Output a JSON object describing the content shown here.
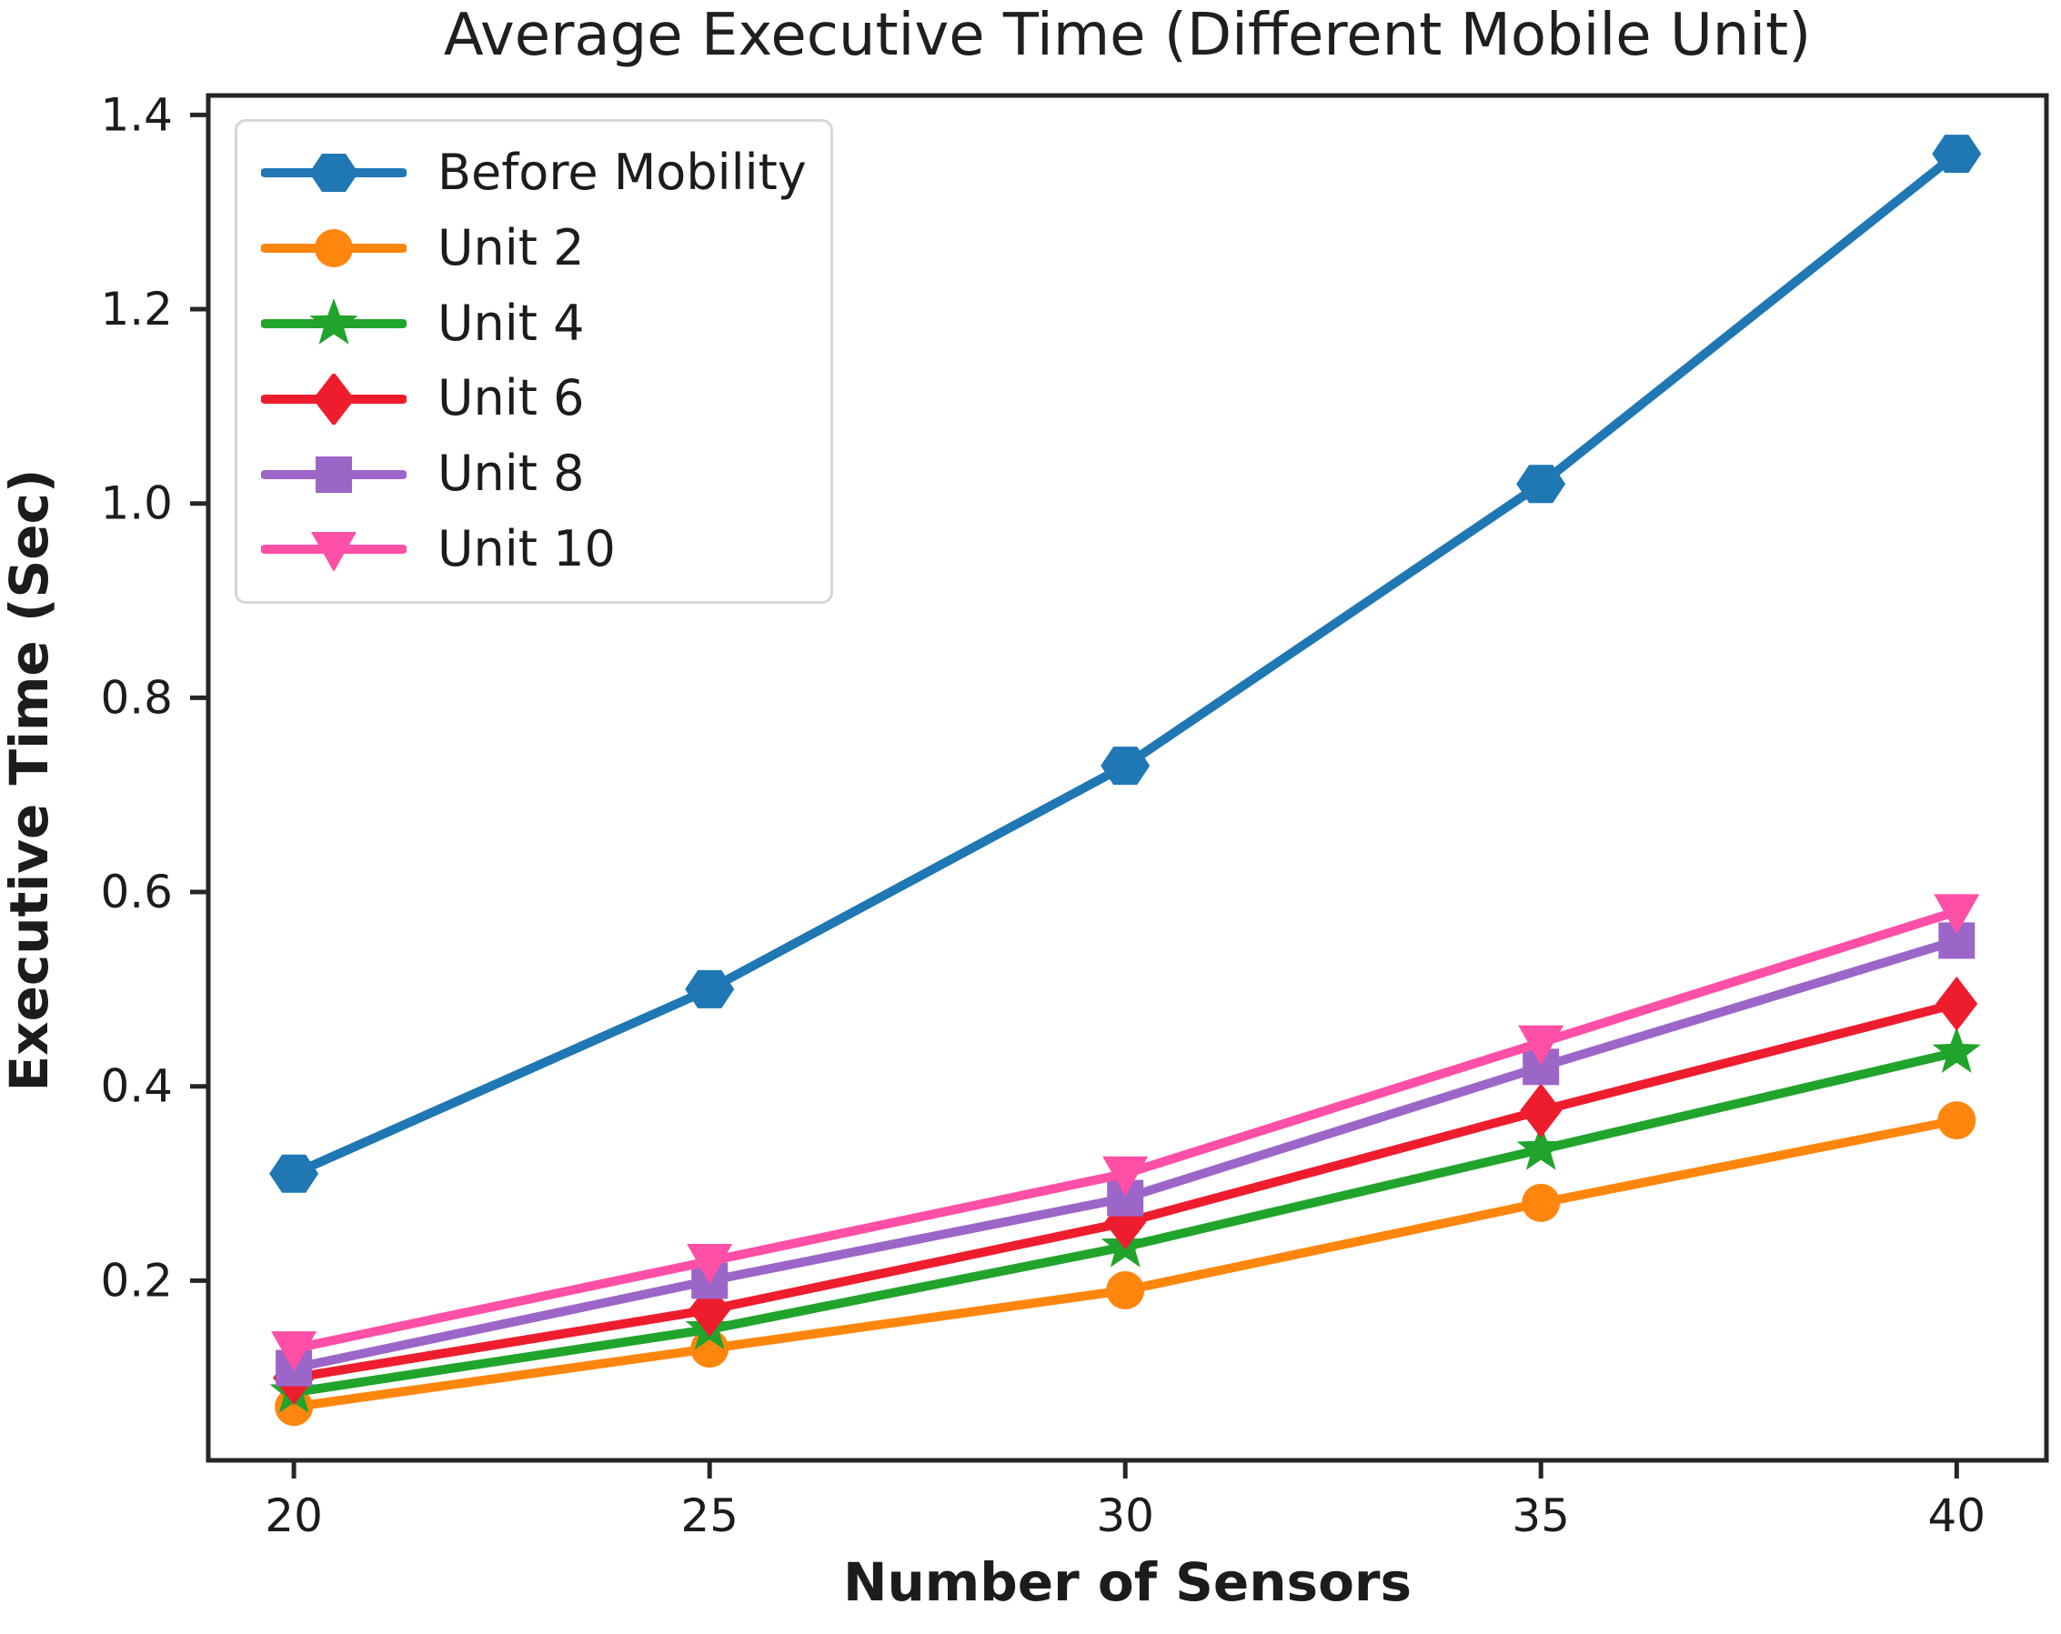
{
  "figure": {
    "background": "#ffffff"
  },
  "chart_data": {
    "type": "line",
    "title": "Average Executive Time (Different Mobile Unit)",
    "xlabel": "Number of Sensors",
    "ylabel": "Executive Time (Sec)",
    "x": [
      20,
      25,
      30,
      35,
      40
    ],
    "xtick_labels": [
      "20",
      "25",
      "30",
      "35",
      "40"
    ],
    "ytick_values": [
      0.2,
      0.4,
      0.6,
      0.8,
      1.0,
      1.2,
      1.4
    ],
    "ytick_labels": [
      "0.2",
      "0.4",
      "0.6",
      "0.8",
      "1.0",
      "1.2",
      "1.4"
    ],
    "xlim": [
      18.97,
      41.08
    ],
    "ylim": [
      0.015,
      1.42
    ],
    "grid": false,
    "axis_color": "#262626",
    "text_color": "#1c1c1c",
    "legend": {
      "position": "upper-left",
      "border_color": "#d7d7d7",
      "background": "#ffffff"
    },
    "series": [
      {
        "name": "Before Mobility",
        "color": "#1f77b4",
        "marker": "hexagon",
        "values": [
          0.31,
          0.5,
          0.73,
          1.02,
          1.36
        ]
      },
      {
        "name": "Unit 2",
        "color": "#ff860d",
        "marker": "circle",
        "values": [
          0.07,
          0.13,
          0.19,
          0.28,
          0.365
        ]
      },
      {
        "name": "Unit 4",
        "color": "#21a42c",
        "marker": "star",
        "values": [
          0.085,
          0.15,
          0.235,
          0.335,
          0.435
        ]
      },
      {
        "name": "Unit 6",
        "color": "#ee1d2e",
        "marker": "diamond",
        "values": [
          0.1,
          0.17,
          0.26,
          0.375,
          0.485
        ]
      },
      {
        "name": "Unit 8",
        "color": "#9c66c8",
        "marker": "square",
        "values": [
          0.11,
          0.2,
          0.285,
          0.42,
          0.55
        ]
      },
      {
        "name": "Unit 10",
        "color": "#ff4fa6",
        "marker": "triangle-down",
        "values": [
          0.13,
          0.22,
          0.31,
          0.445,
          0.58
        ]
      }
    ]
  }
}
